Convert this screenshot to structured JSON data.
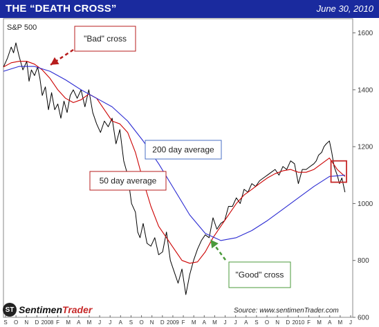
{
  "header": {
    "title": "THE “DEATH CROSS”",
    "date": "June 30, 2010",
    "bar_color": "#1a2a9e"
  },
  "footer": {
    "logo_prefix": "Sentimen",
    "logo_accent": "Trader",
    "logo_mark": "ST",
    "source": "Source:  www.sentimenTrader.com"
  },
  "chart_data": {
    "type": "line",
    "title": "S&P 500",
    "y_ticks": [
      600,
      800,
      1000,
      1200,
      1400,
      1600
    ],
    "ylim": [
      600,
      1650
    ],
    "xlim": [
      0,
      45
    ],
    "x_tick_labels": [
      "S",
      "O",
      "N",
      "D",
      "2008",
      "F",
      "M",
      "A",
      "M",
      "J",
      "J",
      "A",
      "S",
      "O",
      "N",
      "D",
      "2009",
      "F",
      "M",
      "A",
      "M",
      "J",
      "J",
      "A",
      "S",
      "O",
      "N",
      "D",
      "2010",
      "F",
      "M",
      "A",
      "M",
      "J"
    ],
    "grid": false,
    "series": [
      {
        "key": "price",
        "name": "",
        "color": "#000000",
        "x": [
          0,
          0.5,
          1,
          1.3,
          1.6,
          2,
          2.5,
          3,
          3.3,
          3.6,
          4,
          4.4,
          4.7,
          5,
          5.4,
          5.8,
          6.2,
          6.6,
          7,
          7.4,
          7.8,
          8.2,
          8.6,
          9,
          9.5,
          10,
          10.5,
          11,
          11.5,
          12,
          12.5,
          13,
          13.5,
          14,
          14.5,
          15,
          15.5,
          16,
          16.5,
          17,
          17.3,
          17.6,
          18,
          18.5,
          19,
          19.5,
          20,
          20.5,
          21,
          21.5,
          22,
          22.5,
          23,
          23.5,
          24,
          24.5,
          25,
          25.5,
          26,
          26.5,
          27,
          27.5,
          28,
          28.5,
          29,
          29.5,
          30,
          30.5,
          31,
          31.5,
          32,
          32.5,
          33,
          33.5,
          34,
          34.5,
          35,
          35.5,
          36,
          36.5,
          37,
          37.5,
          38,
          38.5,
          39,
          39.5,
          40,
          40.3,
          40.6,
          41,
          41.3,
          41.6,
          42,
          42.3,
          42.6,
          43,
          43.3,
          43.6,
          44
        ],
        "values": [
          1480,
          1510,
          1550,
          1530,
          1565,
          1520,
          1470,
          1500,
          1430,
          1470,
          1450,
          1480,
          1440,
          1380,
          1410,
          1330,
          1390,
          1330,
          1350,
          1300,
          1360,
          1320,
          1380,
          1400,
          1370,
          1400,
          1340,
          1400,
          1320,
          1280,
          1250,
          1290,
          1270,
          1300,
          1210,
          1260,
          1150,
          1100,
          1000,
          970,
          900,
          880,
          930,
          860,
          850,
          880,
          820,
          830,
          900,
          800,
          760,
          720,
          770,
          680,
          750,
          800,
          840,
          870,
          890,
          880,
          950,
          910,
          930,
          940,
          990,
          990,
          1020,
          1000,
          1050,
          1040,
          1070,
          1060,
          1080,
          1090,
          1100,
          1110,
          1120,
          1100,
          1130,
          1120,
          1150,
          1140,
          1070,
          1120,
          1120,
          1130,
          1140,
          1150,
          1170,
          1180,
          1200,
          1210,
          1220,
          1180,
          1130,
          1100,
          1070,
          1090,
          1040
        ],
        "decimals": 0
      },
      {
        "key": "ma50",
        "name": "50 day average",
        "color": "#cc0000",
        "x": [
          0,
          1,
          2,
          3,
          4,
          5,
          6,
          7,
          8,
          9,
          10,
          11,
          12,
          13,
          14,
          15,
          16,
          17,
          18,
          19,
          20,
          21,
          22,
          23,
          24,
          25,
          26,
          27,
          28,
          29,
          30,
          31,
          32,
          33,
          34,
          35,
          36,
          37,
          38,
          39,
          40,
          41,
          42,
          43,
          44
        ],
        "values": [
          1480,
          1495,
          1500,
          1500,
          1490,
          1470,
          1440,
          1400,
          1370,
          1355,
          1365,
          1385,
          1370,
          1330,
          1290,
          1280,
          1250,
          1180,
          1080,
          990,
          920,
          880,
          840,
          800,
          790,
          795,
          830,
          880,
          920,
          960,
          1000,
          1030,
          1050,
          1070,
          1090,
          1105,
          1115,
          1120,
          1110,
          1110,
          1120,
          1140,
          1160,
          1120,
          1095
        ],
        "decimals": 0
      },
      {
        "key": "ma200",
        "name": "200 day average",
        "color": "#2a2ad2",
        "x": [
          0,
          2,
          4,
          6,
          8,
          10,
          12,
          14,
          16,
          18,
          20,
          22,
          24,
          26,
          28,
          30,
          32,
          34,
          36,
          38,
          40,
          42,
          44
        ],
        "values": [
          1465,
          1482,
          1482,
          1465,
          1435,
          1400,
          1370,
          1340,
          1290,
          1220,
          1140,
          1050,
          960,
          895,
          870,
          880,
          905,
          940,
          980,
          1020,
          1060,
          1095,
          1100
        ],
        "decimals": 0
      }
    ],
    "annotations": [
      {
        "key": "bad",
        "text": "\"Bad\" cross",
        "color": "#b71c1c",
        "x": 5.8,
        "y": 1495
      },
      {
        "key": "good",
        "text": "\"Good\" cross",
        "color": "#4a9a3a",
        "x": 26.6,
        "y": 880
      },
      {
        "key": "ma200",
        "text": "200 day average",
        "color": "#4a6fc6"
      },
      {
        "key": "ma50",
        "text": "50 day average",
        "color": "#b71c1c"
      }
    ],
    "highlight": {
      "x_start": 42.2,
      "x_end": 44.2,
      "y_start": 1075,
      "y_end": 1150,
      "color": "#c62828"
    }
  }
}
